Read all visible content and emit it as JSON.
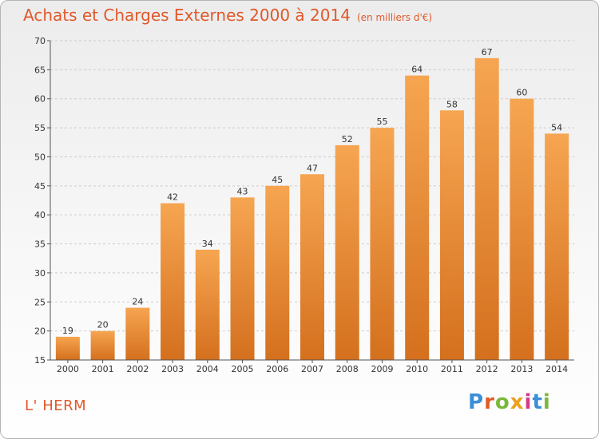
{
  "header": {
    "title": "Achats et Charges Externes 2000 à 2014",
    "unit": "(en milliers d'€)"
  },
  "footer": {
    "city": "L' HERM",
    "brand_letters": [
      "P",
      "r",
      "o",
      "x",
      "i",
      "t",
      "i"
    ]
  },
  "colors": {
    "title": "#e0592a",
    "bar_top": "#f6a551",
    "bar_bottom": "#d4701e",
    "axis": "#555555",
    "grid": "#cccccc"
  },
  "chart_data": {
    "type": "bar",
    "title": "Achats et Charges Externes 2000 à 2014",
    "subtitle": "(en milliers d'€)",
    "categories": [
      "2000",
      "2001",
      "2002",
      "2003",
      "2004",
      "2005",
      "2006",
      "2007",
      "2008",
      "2009",
      "2010",
      "2011",
      "2012",
      "2013",
      "2014"
    ],
    "values": [
      19,
      20,
      24,
      42,
      34,
      43,
      45,
      47,
      52,
      55,
      64,
      58,
      67,
      60,
      54
    ],
    "ylim": [
      15,
      70
    ],
    "yticks": [
      15,
      20,
      25,
      30,
      35,
      40,
      45,
      50,
      55,
      60,
      65,
      70
    ],
    "grid": true,
    "data_labels": true
  }
}
